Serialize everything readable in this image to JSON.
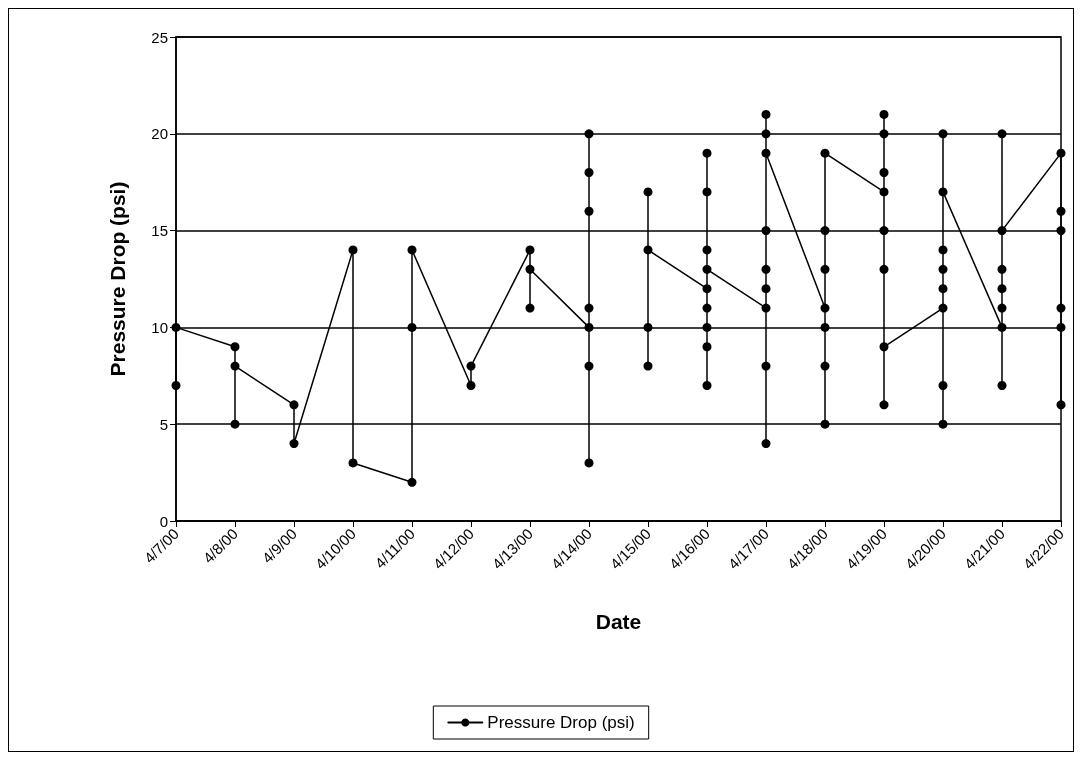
{
  "chart_data": {
    "type": "line",
    "xlabel": "Date",
    "ylabel": "Pressure Drop (psi)",
    "categories": [
      "4/7/00",
      "4/8/00",
      "4/9/00",
      "4/10/00",
      "4/11/00",
      "4/12/00",
      "4/13/00",
      "4/14/00",
      "4/15/00",
      "4/16/00",
      "4/17/00",
      "4/18/00",
      "4/19/00",
      "4/20/00",
      "4/21/00",
      "4/22/00"
    ],
    "series": [
      {
        "name": "Pressure Drop (psi)",
        "color": "#000000",
        "x": [
          "4/7/00",
          "4/7/00",
          "4/8/00",
          "4/8/00",
          "4/8/00",
          "4/9/00",
          "4/9/00",
          "4/10/00",
          "4/10/00",
          "4/11/00",
          "4/11/00",
          "4/11/00",
          "4/12/00",
          "4/12/00",
          "4/13/00",
          "4/13/00",
          "4/13/00",
          "4/14/00",
          "4/14/00",
          "4/14/00",
          "4/14/00",
          "4/14/00",
          "4/14/00",
          "4/14/00",
          "4/15/00",
          "4/15/00",
          "4/15/00",
          "4/15/00",
          "4/15/00",
          "4/16/00",
          "4/16/00",
          "4/16/00",
          "4/16/00",
          "4/16/00",
          "4/16/00",
          "4/16/00",
          "4/16/00",
          "4/16/00",
          "4/17/00",
          "4/17/00",
          "4/17/00",
          "4/17/00",
          "4/17/00",
          "4/17/00",
          "4/17/00",
          "4/17/00",
          "4/17/00",
          "4/18/00",
          "4/18/00",
          "4/18/00",
          "4/18/00",
          "4/18/00",
          "4/18/00",
          "4/18/00",
          "4/19/00",
          "4/19/00",
          "4/19/00",
          "4/19/00",
          "4/19/00",
          "4/19/00",
          "4/19/00",
          "4/19/00",
          "4/20/00",
          "4/20/00",
          "4/20/00",
          "4/20/00",
          "4/20/00",
          "4/20/00",
          "4/20/00",
          "4/20/00",
          "4/21/00",
          "4/21/00",
          "4/21/00",
          "4/21/00",
          "4/21/00",
          "4/21/00",
          "4/21/00",
          "4/22/00",
          "4/22/00",
          "4/22/00",
          "4/22/00",
          "4/22/00",
          "4/22/00"
        ],
        "values": [
          7,
          10,
          9,
          5,
          8,
          6,
          4,
          14,
          3,
          2,
          10,
          14,
          7,
          8,
          14,
          11,
          13,
          10,
          20,
          18,
          16,
          11,
          8,
          3,
          null,
          17,
          8,
          10,
          14,
          12,
          11,
          10,
          9,
          7,
          14,
          17,
          19,
          13,
          11,
          12,
          13,
          15,
          20,
          21,
          8,
          4,
          19,
          11,
          10,
          8,
          5,
          13,
          15,
          19,
          17,
          18,
          20,
          21,
          15,
          13,
          6,
          9,
          11,
          12,
          13,
          14,
          20,
          7,
          5,
          17,
          10,
          11,
          12,
          13,
          20,
          7,
          15,
          19,
          16,
          15,
          11,
          10,
          6
        ]
      }
    ],
    "ylim": [
      0,
      25
    ],
    "yticks": [
      0,
      5,
      10,
      15,
      20,
      25
    ],
    "grid": "y",
    "legend": "bottom",
    "marker": "circle",
    "line_style": "solid"
  }
}
